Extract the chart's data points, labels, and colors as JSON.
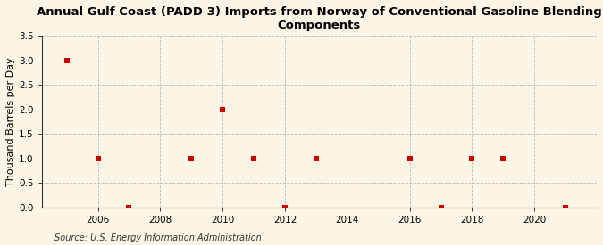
{
  "title": "Annual Gulf Coast (PADD 3) Imports from Norway of Conventional Gasoline Blending\nComponents",
  "ylabel": "Thousand Barrels per Day",
  "source": "Source: U.S. Energy Information Administration",
  "x_data": [
    2005,
    2006,
    2007,
    2009,
    2010,
    2011,
    2012,
    2013,
    2016,
    2017,
    2018,
    2019,
    2021
  ],
  "y_data": [
    3.0,
    1.0,
    0.0,
    1.0,
    2.0,
    1.0,
    0.0,
    1.0,
    1.0,
    0.0,
    1.0,
    1.0,
    0.0
  ],
  "marker_color": "#cc0000",
  "marker_size": 4,
  "marker_style": "s",
  "ylim": [
    0,
    3.5
  ],
  "yticks": [
    0.0,
    0.5,
    1.0,
    1.5,
    2.0,
    2.5,
    3.0,
    3.5
  ],
  "xlim": [
    2004.2,
    2022.0
  ],
  "xticks": [
    2006,
    2008,
    2010,
    2012,
    2014,
    2016,
    2018,
    2020
  ],
  "grid_color": "#bbbbbb",
  "background_color": "#faf5e4",
  "title_fontsize": 9.5,
  "axis_fontsize": 8,
  "tick_fontsize": 7.5,
  "source_fontsize": 7
}
